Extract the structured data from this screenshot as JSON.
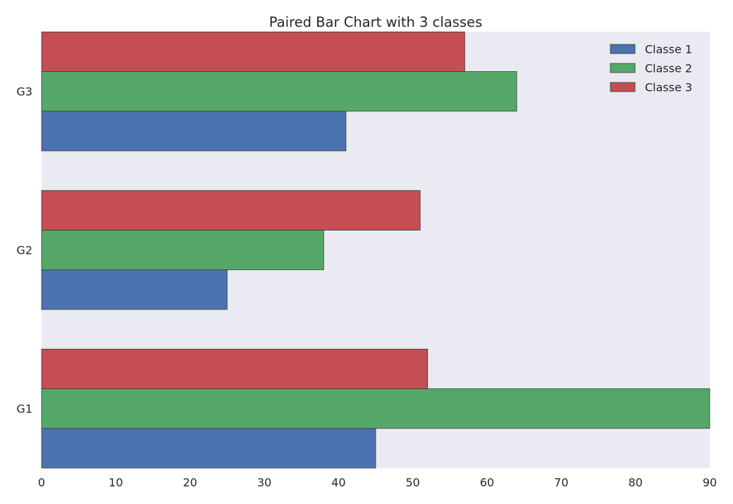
{
  "chart_data": {
    "type": "bar",
    "orientation": "horizontal",
    "title": "Paired Bar Chart with 3 classes",
    "categories": [
      "G1",
      "G2",
      "G3"
    ],
    "series": [
      {
        "name": "Classe 1",
        "color": "#4c72b0",
        "values": [
          45,
          25,
          41
        ]
      },
      {
        "name": "Classe 2",
        "color": "#55a868",
        "values": [
          90,
          38,
          64
        ]
      },
      {
        "name": "Classe 3",
        "color": "#c44e52",
        "values": [
          52,
          51,
          57
        ]
      }
    ],
    "xlim": [
      0,
      90
    ],
    "xticks": [
      0,
      10,
      20,
      30,
      40,
      50,
      60,
      70,
      80,
      90
    ],
    "xlabel": "",
    "ylabel": "",
    "grid": false,
    "legend_position": "top-right",
    "background_color": "#eaeaf2"
  }
}
